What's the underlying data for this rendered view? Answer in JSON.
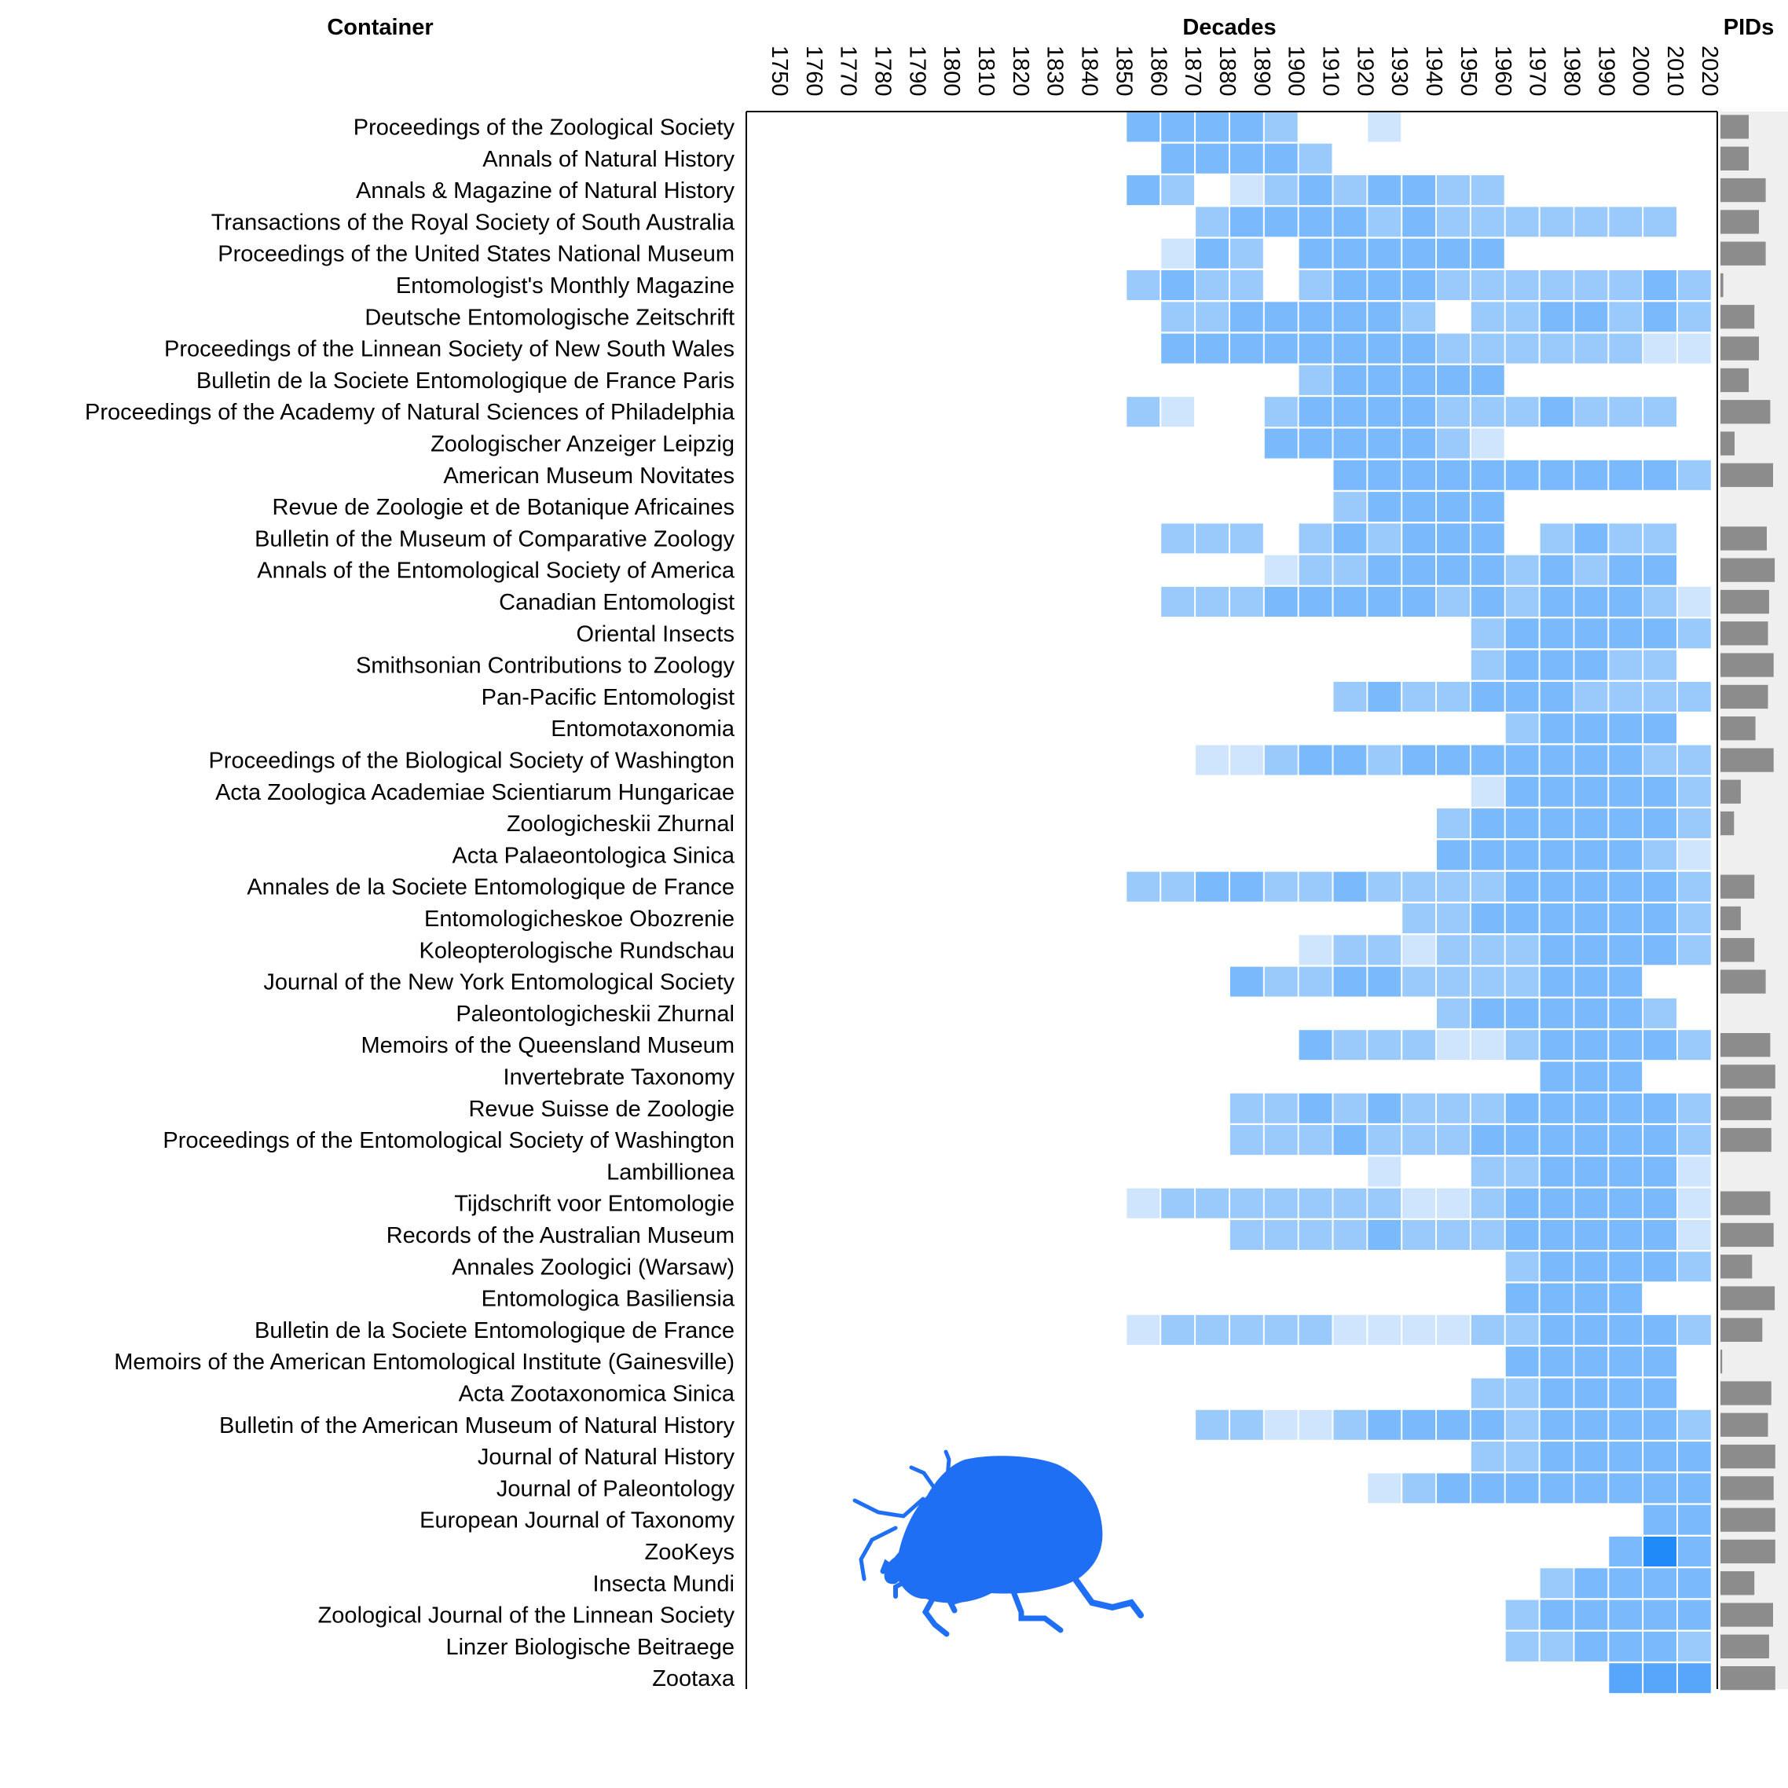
{
  "chart_data": {
    "type": "heatmap",
    "headers": {
      "container": "Container",
      "decades": "Decades",
      "pids": "PIDs"
    },
    "decades": [
      1750,
      1760,
      1770,
      1780,
      1790,
      1800,
      1810,
      1820,
      1830,
      1840,
      1850,
      1860,
      1870,
      1880,
      1890,
      1900,
      1910,
      1920,
      1930,
      1940,
      1950,
      1960,
      1970,
      1980,
      1990,
      2000,
      2010,
      2020
    ],
    "intensity_scale": "0 = empty, 1 = lightest blue, 5 = darkest blue",
    "colors": {
      "1": "#cfe4fd",
      "2": "#9acafc",
      "3": "#7ab9fb",
      "4": "#58a6fb",
      "5": "#1f8af8",
      "pid_bar": "#8c8c8c",
      "pid_bg": "#efefef",
      "icon": "#1f6ff5"
    },
    "pid_scale_max": 1.0,
    "rows": [
      {
        "name": "Proceedings of the Zoological Society",
        "cells": {
          "1860": 3,
          "1870": 3,
          "1880": 3,
          "1890": 3,
          "1900": 2,
          "1930": 1
        },
        "pids": 0.5
      },
      {
        "name": "Annals of Natural History",
        "cells": {
          "1870": 3,
          "1880": 3,
          "1890": 3,
          "1900": 3,
          "1910": 2
        },
        "pids": 0.5
      },
      {
        "name": "Annals & Magazine of Natural History",
        "cells": {
          "1860": 3,
          "1870": 2,
          "1890": 1,
          "1900": 2,
          "1910": 3,
          "1920": 2,
          "1930": 3,
          "1940": 3,
          "1950": 2,
          "1960": 2
        },
        "pids": 0.8
      },
      {
        "name": "Transactions of the Royal Society of South Australia",
        "cells": {
          "1880": 2,
          "1890": 3,
          "1900": 3,
          "1910": 3,
          "1920": 3,
          "1930": 2,
          "1940": 3,
          "1950": 2,
          "1960": 2,
          "1970": 2,
          "1980": 2,
          "1990": 2,
          "2000": 2,
          "2010": 2
        },
        "pids": 0.68
      },
      {
        "name": "Proceedings of the United States National Museum",
        "cells": {
          "1870": 1,
          "1880": 3,
          "1890": 2,
          "1910": 3,
          "1920": 3,
          "1930": 3,
          "1940": 3,
          "1950": 3,
          "1960": 3
        },
        "pids": 0.8
      },
      {
        "name": "Entomologist's Monthly Magazine",
        "cells": {
          "1860": 2,
          "1870": 3,
          "1880": 2,
          "1890": 2,
          "1910": 2,
          "1920": 3,
          "1930": 3,
          "1940": 3,
          "1950": 2,
          "1960": 2,
          "1970": 2,
          "1980": 2,
          "1990": 2,
          "2000": 2,
          "2010": 3,
          "2020": 2
        },
        "pids": 0.05
      },
      {
        "name": "Deutsche Entomologische Zeitschrift",
        "cells": {
          "1870": 2,
          "1880": 2,
          "1890": 3,
          "1900": 3,
          "1910": 3,
          "1920": 3,
          "1930": 3,
          "1940": 2,
          "1960": 2,
          "1970": 2,
          "1980": 3,
          "1990": 3,
          "2000": 2,
          "2010": 3,
          "2020": 2
        },
        "pids": 0.6
      },
      {
        "name": "Proceedings of the Linnean Society of New South Wales",
        "cells": {
          "1870": 3,
          "1880": 3,
          "1890": 3,
          "1900": 3,
          "1910": 3,
          "1920": 3,
          "1930": 3,
          "1940": 3,
          "1950": 2,
          "1960": 2,
          "1970": 2,
          "1980": 2,
          "1990": 2,
          "2000": 2,
          "2010": 1,
          "2020": 1
        },
        "pids": 0.68
      },
      {
        "name": "Bulletin de la Societe Entomologique de France Paris",
        "cells": {
          "1910": 2,
          "1920": 3,
          "1930": 3,
          "1940": 3,
          "1950": 3,
          "1960": 3
        },
        "pids": 0.5
      },
      {
        "name": "Proceedings of the Academy of Natural Sciences of Philadelphia",
        "cells": {
          "1860": 2,
          "1870": 1,
          "1900": 2,
          "1910": 3,
          "1920": 3,
          "1930": 3,
          "1940": 3,
          "1950": 2,
          "1960": 2,
          "1970": 2,
          "1980": 3,
          "1990": 2,
          "2000": 2,
          "2010": 2
        },
        "pids": 0.88
      },
      {
        "name": "Zoologischer Anzeiger Leipzig",
        "cells": {
          "1900": 3,
          "1910": 3,
          "1920": 3,
          "1930": 3,
          "1940": 3,
          "1950": 2,
          "1960": 1
        },
        "pids": 0.25
      },
      {
        "name": "American Museum Novitates",
        "cells": {
          "1920": 3,
          "1930": 3,
          "1940": 3,
          "1950": 3,
          "1960": 3,
          "1970": 3,
          "1980": 3,
          "1990": 3,
          "2000": 3,
          "2010": 3,
          "2020": 2
        },
        "pids": 0.93
      },
      {
        "name": "Revue de Zoologie et de Botanique Africaines",
        "cells": {
          "1920": 2,
          "1930": 3,
          "1940": 3,
          "1950": 3,
          "1960": 3
        },
        "pids": 0
      },
      {
        "name": "Bulletin of the Museum of Comparative Zoology",
        "cells": {
          "1870": 2,
          "1880": 2,
          "1890": 2,
          "1910": 2,
          "1920": 3,
          "1930": 2,
          "1940": 3,
          "1950": 3,
          "1960": 3,
          "1980": 2,
          "1990": 3,
          "2000": 2,
          "2010": 2
        },
        "pids": 0.82
      },
      {
        "name": "Annals of the Entomological Society of America",
        "cells": {
          "1900": 1,
          "1910": 2,
          "1920": 2,
          "1930": 3,
          "1940": 3,
          "1950": 3,
          "1960": 3,
          "1970": 2,
          "1980": 3,
          "1990": 2,
          "2000": 3,
          "2010": 3
        },
        "pids": 0.96
      },
      {
        "name": "Canadian Entomologist",
        "cells": {
          "1870": 2,
          "1880": 2,
          "1890": 2,
          "1900": 3,
          "1910": 3,
          "1920": 3,
          "1930": 3,
          "1940": 3,
          "1950": 2,
          "1960": 3,
          "1970": 2,
          "1980": 3,
          "1990": 3,
          "2000": 3,
          "2010": 2,
          "2020": 1
        },
        "pids": 0.86
      },
      {
        "name": "Oriental Insects",
        "cells": {
          "1960": 2,
          "1970": 3,
          "1980": 3,
          "1990": 3,
          "2000": 3,
          "2010": 3,
          "2020": 2
        },
        "pids": 0.84
      },
      {
        "name": "Smithsonian Contributions to Zoology",
        "cells": {
          "1960": 2,
          "1970": 3,
          "1980": 3,
          "1990": 3,
          "2000": 2,
          "2010": 2
        },
        "pids": 0.94
      },
      {
        "name": "Pan-Pacific Entomologist",
        "cells": {
          "1920": 2,
          "1930": 3,
          "1940": 2,
          "1950": 2,
          "1960": 3,
          "1970": 3,
          "1980": 3,
          "1990": 2,
          "2000": 2,
          "2010": 2,
          "2020": 2
        },
        "pids": 0.84
      },
      {
        "name": "Entomotaxonomia",
        "cells": {
          "1970": 2,
          "1980": 3,
          "1990": 3,
          "2000": 3,
          "2010": 3
        },
        "pids": 0.62
      },
      {
        "name": "Proceedings of the Biological Society of Washington",
        "cells": {
          "1880": 1,
          "1890": 1,
          "1900": 2,
          "1910": 3,
          "1920": 3,
          "1930": 2,
          "1940": 3,
          "1950": 3,
          "1960": 3,
          "1970": 3,
          "1980": 3,
          "1990": 3,
          "2000": 3,
          "2010": 2,
          "2020": 2
        },
        "pids": 0.94
      },
      {
        "name": "Acta Zoologica Academiae Scientiarum Hungaricae",
        "cells": {
          "1960": 1,
          "1970": 3,
          "1980": 3,
          "1990": 3,
          "2000": 3,
          "2010": 3,
          "2020": 2
        },
        "pids": 0.36
      },
      {
        "name": "Zoologicheskii Zhurnal",
        "cells": {
          "1950": 2,
          "1960": 3,
          "1970": 3,
          "1980": 3,
          "1990": 3,
          "2000": 3,
          "2010": 3,
          "2020": 2
        },
        "pids": 0.24
      },
      {
        "name": "Acta Palaeontologica Sinica",
        "cells": {
          "1950": 3,
          "1960": 3,
          "1970": 3,
          "1980": 3,
          "1990": 3,
          "2000": 3,
          "2010": 2,
          "2020": 1
        },
        "pids": 0
      },
      {
        "name": "Annales de la Societe Entomologique de France",
        "cells": {
          "1860": 2,
          "1870": 2,
          "1880": 3,
          "1890": 3,
          "1900": 2,
          "1910": 2,
          "1920": 3,
          "1930": 2,
          "1940": 2,
          "1950": 2,
          "1960": 2,
          "1970": 3,
          "1980": 3,
          "1990": 3,
          "2000": 3,
          "2010": 3,
          "2020": 2
        },
        "pids": 0.6
      },
      {
        "name": "Entomologicheskoe Obozrenie",
        "cells": {
          "1940": 2,
          "1950": 2,
          "1960": 3,
          "1970": 3,
          "1980": 3,
          "1990": 3,
          "2000": 3,
          "2010": 3,
          "2020": 2
        },
        "pids": 0.36
      },
      {
        "name": "Koleopterologische Rundschau",
        "cells": {
          "1910": 1,
          "1920": 2,
          "1930": 2,
          "1940": 1,
          "1950": 2,
          "1960": 2,
          "1970": 2,
          "1980": 3,
          "1990": 3,
          "2000": 3,
          "2010": 3,
          "2020": 2
        },
        "pids": 0.6
      },
      {
        "name": "Journal of the New York Entomological Society",
        "cells": {
          "1890": 3,
          "1900": 2,
          "1910": 2,
          "1920": 3,
          "1930": 3,
          "1940": 2,
          "1950": 2,
          "1960": 2,
          "1970": 2,
          "1980": 3,
          "1990": 3,
          "2000": 3
        },
        "pids": 0.8
      },
      {
        "name": "Paleontologicheskii Zhurnal",
        "cells": {
          "1950": 2,
          "1960": 3,
          "1970": 3,
          "1980": 3,
          "1990": 3,
          "2000": 3,
          "2010": 2
        },
        "pids": 0
      },
      {
        "name": "Memoirs of the Queensland Museum",
        "cells": {
          "1910": 3,
          "1920": 2,
          "1930": 2,
          "1940": 2,
          "1950": 1,
          "1960": 1,
          "1970": 2,
          "1980": 3,
          "1990": 3,
          "2000": 3,
          "2010": 3,
          "2020": 2
        },
        "pids": 0.88
      },
      {
        "name": "Invertebrate Taxonomy",
        "cells": {
          "1980": 3,
          "1990": 3,
          "2000": 3
        },
        "pids": 0.97
      },
      {
        "name": "Revue Suisse de Zoologie",
        "cells": {
          "1890": 2,
          "1900": 2,
          "1910": 3,
          "1920": 2,
          "1930": 3,
          "1940": 2,
          "1950": 2,
          "1960": 2,
          "1970": 3,
          "1980": 3,
          "1990": 3,
          "2000": 3,
          "2010": 3,
          "2020": 2
        },
        "pids": 0.9
      },
      {
        "name": "Proceedings of the Entomological Society of Washington",
        "cells": {
          "1890": 2,
          "1900": 2,
          "1910": 2,
          "1920": 3,
          "1930": 2,
          "1940": 2,
          "1950": 2,
          "1960": 3,
          "1970": 3,
          "1980": 3,
          "1990": 3,
          "2000": 3,
          "2010": 3,
          "2020": 2
        },
        "pids": 0.9
      },
      {
        "name": "Lambillionea",
        "cells": {
          "1930": 1,
          "1960": 2,
          "1970": 2,
          "1980": 3,
          "1990": 3,
          "2000": 3,
          "2010": 3,
          "2020": 1
        },
        "pids": 0
      },
      {
        "name": "Tijdschrift voor Entomologie",
        "cells": {
          "1860": 1,
          "1870": 2,
          "1880": 2,
          "1890": 2,
          "1900": 2,
          "1910": 2,
          "1920": 2,
          "1930": 2,
          "1940": 1,
          "1950": 1,
          "1960": 2,
          "1970": 3,
          "1980": 3,
          "1990": 3,
          "2000": 3,
          "2010": 3,
          "2020": 1
        },
        "pids": 0.88
      },
      {
        "name": "Records of the Australian Museum",
        "cells": {
          "1890": 2,
          "1900": 2,
          "1910": 2,
          "1920": 2,
          "1930": 3,
          "1940": 2,
          "1950": 2,
          "1960": 2,
          "1970": 3,
          "1980": 3,
          "1990": 3,
          "2000": 3,
          "2010": 3,
          "2020": 1
        },
        "pids": 0.94
      },
      {
        "name": "Annales Zoologici (Warsaw)",
        "cells": {
          "1970": 2,
          "1980": 3,
          "1990": 3,
          "2000": 3,
          "2010": 3,
          "2020": 2
        },
        "pids": 0.56
      },
      {
        "name": "Entomologica Basiliensia",
        "cells": {
          "1970": 3,
          "1980": 3,
          "1990": 3,
          "2000": 3
        },
        "pids": 0.96
      },
      {
        "name": "Bulletin de la Societe Entomologique de France",
        "cells": {
          "1860": 1,
          "1870": 2,
          "1880": 2,
          "1890": 2,
          "1900": 2,
          "1910": 2,
          "1920": 1,
          "1930": 1,
          "1940": 1,
          "1950": 1,
          "1960": 2,
          "1970": 2,
          "1980": 3,
          "1990": 3,
          "2000": 3,
          "2010": 3,
          "2020": 2
        },
        "pids": 0.74
      },
      {
        "name": "Memoirs of the American Entomological Institute (Gainesville)",
        "cells": {
          "1970": 3,
          "1980": 3,
          "1990": 3,
          "2000": 3,
          "2010": 3
        },
        "pids": 0.03
      },
      {
        "name": "Acta Zootaxonomica Sinica",
        "cells": {
          "1960": 2,
          "1970": 2,
          "1980": 3,
          "1990": 3,
          "2000": 3,
          "2010": 3
        },
        "pids": 0.9
      },
      {
        "name": "Bulletin of the American Museum of Natural History",
        "cells": {
          "1880": 2,
          "1890": 2,
          "1900": 1,
          "1910": 1,
          "1920": 2,
          "1930": 3,
          "1940": 3,
          "1950": 3,
          "1960": 3,
          "1970": 2,
          "1980": 3,
          "1990": 3,
          "2000": 3,
          "2010": 3,
          "2020": 2
        },
        "pids": 0.84
      },
      {
        "name": "Journal of Natural History",
        "cells": {
          "1960": 2,
          "1970": 2,
          "1980": 3,
          "1990": 3,
          "2000": 3,
          "2010": 3,
          "2020": 3
        },
        "pids": 0.97
      },
      {
        "name": "Journal of Paleontology",
        "cells": {
          "1930": 1,
          "1940": 2,
          "1950": 3,
          "1960": 3,
          "1970": 3,
          "1980": 3,
          "1990": 3,
          "2000": 3,
          "2010": 3,
          "2020": 3
        },
        "pids": 0.94
      },
      {
        "name": "European Journal of Taxonomy",
        "cells": {
          "2010": 3,
          "2020": 3
        },
        "pids": 0.97
      },
      {
        "name": "ZooKeys",
        "cells": {
          "2000": 3,
          "2010": 5,
          "2020": 3
        },
        "pids": 0.97
      },
      {
        "name": "Insecta Mundi",
        "cells": {
          "1980": 2,
          "1990": 3,
          "2000": 3,
          "2010": 3,
          "2020": 3
        },
        "pids": 0.6
      },
      {
        "name": "Zoological Journal of the Linnean Society",
        "cells": {
          "1970": 2,
          "1980": 3,
          "1990": 3,
          "2000": 3,
          "2010": 3,
          "2020": 3
        },
        "pids": 0.93
      },
      {
        "name": "Linzer Biologische Beitraege",
        "cells": {
          "1970": 2,
          "1980": 2,
          "1990": 3,
          "2000": 3,
          "2010": 3,
          "2020": 2
        },
        "pids": 0.86
      },
      {
        "name": "Zootaxa",
        "cells": {
          "2000": 4,
          "2010": 4,
          "2020": 4
        },
        "pids": 0.97
      }
    ]
  },
  "icons": {
    "beetle": "beetle-icon"
  }
}
